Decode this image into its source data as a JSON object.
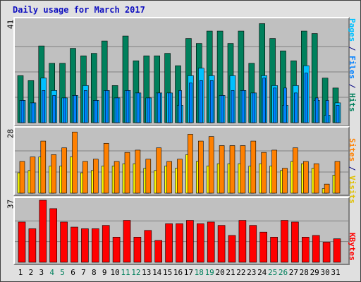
{
  "title": "Daily usage for March 2017",
  "colors": {
    "hits": "#00805c",
    "files": "#0080ff",
    "pages": "#00c0ff",
    "visits": "#ffff00",
    "sites": "#ff8000",
    "kbytes": "#ff0000",
    "weekend": "#00805c",
    "title": "#1010c0"
  },
  "chart_data": [
    {
      "type": "bar",
      "title": "Daily usage for March 2017",
      "categories": [
        "1",
        "2",
        "3",
        "4",
        "5",
        "6",
        "7",
        "8",
        "9",
        "10",
        "11",
        "12",
        "13",
        "14",
        "15",
        "16",
        "17",
        "18",
        "19",
        "20",
        "21",
        "22",
        "23",
        "24",
        "25",
        "26",
        "27",
        "28",
        "29",
        "30",
        "31"
      ],
      "ylabel": "Pages / Files / Hits",
      "ymax_label": "41",
      "ylim": [
        0,
        41
      ],
      "series": [
        {
          "name": "Hits",
          "values": [
            19,
            17,
            31,
            24,
            24,
            30,
            27,
            28,
            33,
            15,
            35,
            25,
            27,
            27,
            28,
            23,
            34,
            32,
            37,
            37,
            32,
            37,
            24,
            40,
            34,
            29,
            25,
            37,
            36,
            18,
            14
          ]
        },
        {
          "name": "Files",
          "values": [
            9,
            8,
            13,
            11,
            10,
            11,
            13,
            9,
            13,
            10,
            13,
            12,
            10,
            12,
            12,
            13,
            16,
            17,
            17,
            11,
            13,
            13,
            12,
            18,
            14,
            14,
            12,
            20,
            10,
            9,
            7
          ]
        },
        {
          "name": "Pages",
          "values": [
            9,
            8,
            18,
            13,
            10,
            11,
            15,
            9,
            13,
            10,
            13,
            12,
            10,
            12,
            12,
            7,
            19,
            22,
            19,
            11,
            19,
            13,
            12,
            19,
            15,
            7,
            15,
            23,
            9,
            3,
            8
          ]
        }
      ]
    },
    {
      "type": "bar",
      "categories": [
        "1",
        "2",
        "3",
        "4",
        "5",
        "6",
        "7",
        "8",
        "9",
        "10",
        "11",
        "12",
        "13",
        "14",
        "15",
        "16",
        "17",
        "18",
        "19",
        "20",
        "21",
        "22",
        "23",
        "24",
        "25",
        "26",
        "27",
        "28",
        "29",
        "30",
        "31"
      ],
      "ylabel": "Sites / Visits",
      "ymax_label": "28",
      "ylim": [
        0,
        28
      ],
      "series": [
        {
          "name": "Visits",
          "values": [
            9,
            10,
            16,
            12,
            12,
            16,
            9,
            10,
            12,
            12,
            13,
            13,
            11,
            10,
            12,
            11,
            17,
            14,
            12,
            13,
            13,
            13,
            12,
            13,
            12,
            10,
            14,
            13,
            11,
            2,
            8
          ]
        },
        {
          "name": "Sites",
          "values": [
            14,
            16,
            23,
            17,
            20,
            27,
            14,
            15,
            22,
            14,
            18,
            19,
            15,
            20,
            14,
            15,
            26,
            23,
            25,
            21,
            21,
            21,
            23,
            18,
            19,
            11,
            20,
            14,
            13,
            4,
            14
          ]
        }
      ]
    },
    {
      "type": "bar",
      "categories": [
        "1",
        "2",
        "3",
        "4",
        "5",
        "6",
        "7",
        "8",
        "9",
        "10",
        "11",
        "12",
        "13",
        "14",
        "15",
        "16",
        "17",
        "18",
        "19",
        "20",
        "21",
        "22",
        "23",
        "24",
        "25",
        "26",
        "27",
        "28",
        "29",
        "30",
        "31"
      ],
      "ylabel": "KBytes",
      "ymax_label": "37",
      "ylim": [
        0,
        37
      ],
      "series": [
        {
          "name": "KBytes",
          "values": [
            24,
            20,
            37,
            32,
            24,
            21,
            20,
            20,
            22,
            15,
            25,
            15,
            19,
            13,
            23,
            23,
            25,
            23,
            24,
            22,
            16,
            25,
            22,
            18,
            15,
            25,
            24,
            15,
            16,
            12,
            14
          ]
        }
      ]
    }
  ],
  "x_weekend_days": [
    4,
    5,
    11,
    12,
    18,
    19,
    25,
    26
  ]
}
